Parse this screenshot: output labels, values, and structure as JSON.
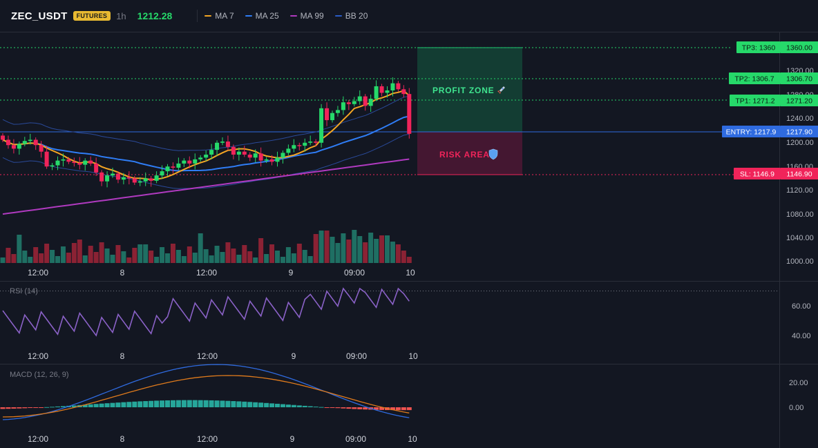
{
  "header": {
    "symbol": "ZEC_USDT",
    "badge": "FUTURES",
    "timeframe": "1h",
    "price": "1212.28",
    "legend": [
      {
        "label": "MA 7",
        "color": "#f5a623"
      },
      {
        "label": "MA 25",
        "color": "#2f7df6"
      },
      {
        "label": "MA 99",
        "color": "#b03ac0"
      },
      {
        "label": "BB 20",
        "color": "#2a5cc7"
      }
    ]
  },
  "price_axis": {
    "ticks": [
      "1320.00",
      "1280.00",
      "1240.00",
      "1200.00",
      "1160.00",
      "1120.00",
      "1080.00",
      "1040.00",
      "1000.00"
    ]
  },
  "time_axis": {
    "ticks": [
      "12:00",
      "8",
      "12:00",
      "9",
      "09:00",
      "10"
    ]
  },
  "levels": {
    "tp3": {
      "label": "TP3: 1360",
      "value": "1360.00"
    },
    "tp2": {
      "label": "TP2: 1306.7",
      "value": "1306.70"
    },
    "tp1": {
      "label": "TP1: 1271.2",
      "value": "1271.20"
    },
    "entry": {
      "label": "ENTRY: 1217.9",
      "value": "1217.90"
    },
    "sl": {
      "label": "SL: 1146.9",
      "value": "1146.90"
    }
  },
  "zones": {
    "profit": "PROFIT ZONE",
    "profit_icon": "rocket-icon",
    "risk": "RISK AREA",
    "risk_icon": "shield-icon"
  },
  "rsi": {
    "title": "RSI (14)",
    "ticks": [
      "60.00",
      "40.00"
    ]
  },
  "macd": {
    "title": "MACD (12, 26, 9)",
    "ticks": [
      "20.00",
      "0.00"
    ]
  },
  "colors": {
    "up": "#26d96a",
    "down": "#f0245a",
    "vol_up": "#1f6f63",
    "vol_down": "#8b2234",
    "background": "#131722"
  }
}
